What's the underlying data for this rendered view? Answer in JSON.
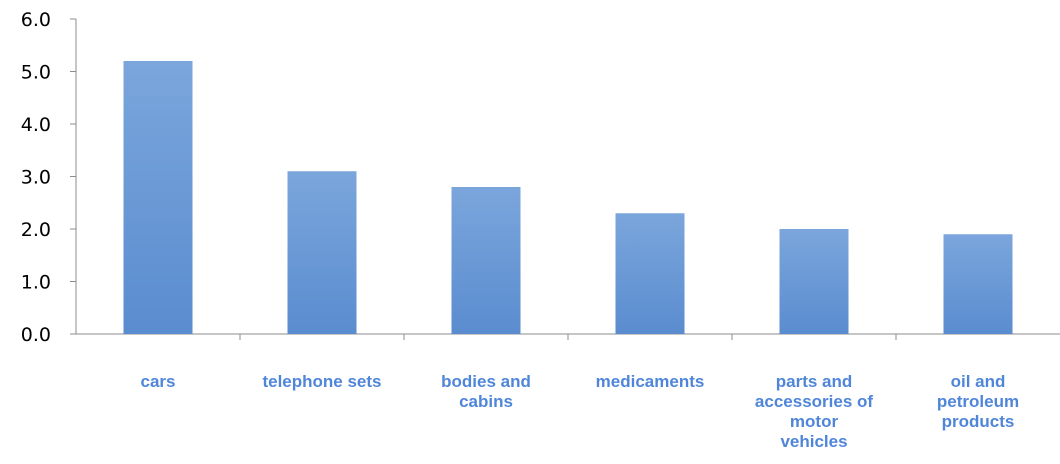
{
  "chart_data": {
    "type": "bar",
    "title": "",
    "xlabel": "",
    "ylabel": "",
    "categories": [
      "cars",
      "telephone sets",
      "bodies and cabins",
      "medicaments",
      "parts and accessories of motor vehicles",
      "oil and petroleum products"
    ],
    "category_label_lines": [
      [
        "cars"
      ],
      [
        "telephone sets"
      ],
      [
        "bodies and",
        "cabins"
      ],
      [
        "medicaments"
      ],
      [
        "parts and",
        "accessories of",
        "motor",
        "vehicles"
      ],
      [
        "oil and",
        "petroleum",
        "products"
      ]
    ],
    "values": [
      5.2,
      3.1,
      2.8,
      2.3,
      2.0,
      1.9
    ],
    "ylim": [
      0,
      6
    ],
    "yticks": [
      "0.0",
      "1.0",
      "2.0",
      "3.0",
      "4.0",
      "5.0",
      "6.0"
    ],
    "grid": false,
    "legend": "none",
    "colors": {
      "bar_top": "#7ba6dc",
      "bar_bottom": "#5a8ccf",
      "label": "#4f86d9",
      "axis": "#8c8c8c"
    }
  }
}
